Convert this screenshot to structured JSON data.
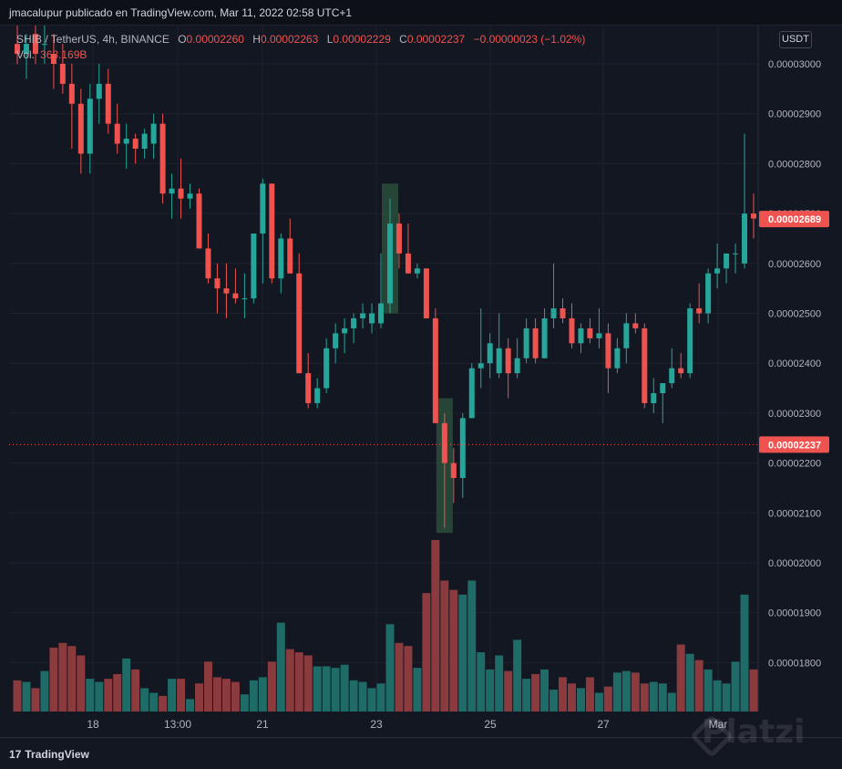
{
  "header": {
    "publisher": "jmacalupur publicado en TradingView.com, Mar 11, 2022 02:58 UTC+1"
  },
  "legend": {
    "symbol": "SHIB / TetherUS, 4h, BINANCE",
    "open_label": "O",
    "open": "0.00002260",
    "high_label": "H",
    "high": "0.00002263",
    "low_label": "L",
    "low": "0.00002229",
    "close_label": "C",
    "close": "0.00002237",
    "change": "−0.00000023 (−1.02%)",
    "volume_label": "Vol.",
    "volume": "363.169B"
  },
  "currency_button": "USDT",
  "footer": {
    "logo": "TradingView",
    "watermark": "Platzi"
  },
  "colors": {
    "bull": "#26a69a",
    "bear": "#ef5350",
    "bull_vol": "#1f6b68",
    "bear_vol": "#8b3a3d",
    "highlight": "#2a4a38",
    "background": "#131722",
    "grid": "#1e222d"
  },
  "chart_data": {
    "type": "candlestick",
    "y_axis_ticks": [
      "0.00003000",
      "0.00002900",
      "0.00002800",
      "0.00002700",
      "0.00002600",
      "0.00002500",
      "0.00002400",
      "0.00002300",
      "0.00002200",
      "0.00002100",
      "0.00002000",
      "0.00001900",
      "0.00001800"
    ],
    "ylim": [
      1.75e-05,
      3.08e-05
    ],
    "x_axis_ticks": [
      "18",
      "13:00",
      "21",
      "23",
      "25",
      "27",
      "Mar"
    ],
    "last_price_label": "0.00002689",
    "current_price_label": "0.00002237",
    "current_price": 2.237e-05,
    "last_price": 2.689e-05,
    "candles": [
      {
        "o": 3.04,
        "h": 3.1,
        "l": 3.0,
        "c": 3.02
      },
      {
        "o": 3.02,
        "h": 3.06,
        "l": 2.97,
        "c": 3.04
      },
      {
        "o": 3.06,
        "h": 3.1,
        "l": 3.0,
        "c": 3.02
      },
      {
        "o": 3.04,
        "h": 3.08,
        "l": 3.0,
        "c": 3.04
      },
      {
        "o": 3.02,
        "h": 3.06,
        "l": 2.95,
        "c": 3.0
      },
      {
        "o": 3.0,
        "h": 3.04,
        "l": 2.94,
        "c": 2.96
      },
      {
        "o": 2.96,
        "h": 3.0,
        "l": 2.83,
        "c": 2.92
      },
      {
        "o": 2.92,
        "h": 2.95,
        "l": 2.78,
        "c": 2.82
      },
      {
        "o": 2.82,
        "h": 2.96,
        "l": 2.78,
        "c": 2.93
      },
      {
        "o": 2.93,
        "h": 3.0,
        "l": 2.88,
        "c": 2.96
      },
      {
        "o": 2.96,
        "h": 2.99,
        "l": 2.86,
        "c": 2.88
      },
      {
        "o": 2.88,
        "h": 2.92,
        "l": 2.82,
        "c": 2.84
      },
      {
        "o": 2.84,
        "h": 2.88,
        "l": 2.79,
        "c": 2.85
      },
      {
        "o": 2.85,
        "h": 2.86,
        "l": 2.8,
        "c": 2.83
      },
      {
        "o": 2.83,
        "h": 2.87,
        "l": 2.81,
        "c": 2.86
      },
      {
        "o": 2.84,
        "h": 2.9,
        "l": 2.81,
        "c": 2.88
      },
      {
        "o": 2.88,
        "h": 2.9,
        "l": 2.72,
        "c": 2.74
      },
      {
        "o": 2.74,
        "h": 2.78,
        "l": 2.69,
        "c": 2.75
      },
      {
        "o": 2.75,
        "h": 2.81,
        "l": 2.69,
        "c": 2.73
      },
      {
        "o": 2.73,
        "h": 2.76,
        "l": 2.71,
        "c": 2.74
      },
      {
        "o": 2.74,
        "h": 2.75,
        "l": 2.63,
        "c": 2.63
      },
      {
        "o": 2.63,
        "h": 2.66,
        "l": 2.56,
        "c": 2.57
      },
      {
        "o": 2.57,
        "h": 2.6,
        "l": 2.5,
        "c": 2.55
      },
      {
        "o": 2.55,
        "h": 2.6,
        "l": 2.49,
        "c": 2.54
      },
      {
        "o": 2.54,
        "h": 2.59,
        "l": 2.52,
        "c": 2.53
      },
      {
        "o": 2.53,
        "h": 2.58,
        "l": 2.49,
        "c": 2.53
      },
      {
        "o": 2.53,
        "h": 2.66,
        "l": 2.52,
        "c": 2.66
      },
      {
        "o": 2.66,
        "h": 2.77,
        "l": 2.56,
        "c": 2.76
      },
      {
        "o": 2.76,
        "h": 2.76,
        "l": 2.56,
        "c": 2.57
      },
      {
        "o": 2.57,
        "h": 2.66,
        "l": 2.54,
        "c": 2.65
      },
      {
        "o": 2.65,
        "h": 2.69,
        "l": 2.58,
        "c": 2.58
      },
      {
        "o": 2.58,
        "h": 2.62,
        "l": 2.38,
        "c": 2.38
      },
      {
        "o": 2.38,
        "h": 2.42,
        "l": 2.31,
        "c": 2.32
      },
      {
        "o": 2.32,
        "h": 2.37,
        "l": 2.31,
        "c": 2.35
      },
      {
        "o": 2.35,
        "h": 2.45,
        "l": 2.34,
        "c": 2.43
      },
      {
        "o": 2.43,
        "h": 2.48,
        "l": 2.4,
        "c": 2.46
      },
      {
        "o": 2.46,
        "h": 2.49,
        "l": 2.42,
        "c": 2.47
      },
      {
        "o": 2.47,
        "h": 2.5,
        "l": 2.44,
        "c": 2.49
      },
      {
        "o": 2.49,
        "h": 2.52,
        "l": 2.47,
        "c": 2.5
      },
      {
        "o": 2.48,
        "h": 2.52,
        "l": 2.46,
        "c": 2.5
      },
      {
        "o": 2.48,
        "h": 2.62,
        "l": 2.47,
        "c": 2.52
      },
      {
        "o": 2.52,
        "h": 2.73,
        "l": 2.5,
        "c": 2.68
      },
      {
        "o": 2.68,
        "h": 2.7,
        "l": 2.59,
        "c": 2.62
      },
      {
        "o": 2.62,
        "h": 2.68,
        "l": 2.58,
        "c": 2.58
      },
      {
        "o": 2.58,
        "h": 2.6,
        "l": 2.57,
        "c": 2.59
      },
      {
        "o": 2.59,
        "h": 2.59,
        "l": 2.49,
        "c": 2.49
      },
      {
        "o": 2.49,
        "h": 2.51,
        "l": 2.28,
        "c": 2.28
      },
      {
        "o": 2.28,
        "h": 2.3,
        "l": 2.07,
        "c": 2.2
      },
      {
        "o": 2.2,
        "h": 2.23,
        "l": 2.12,
        "c": 2.17
      },
      {
        "o": 2.17,
        "h": 2.3,
        "l": 2.13,
        "c": 2.29
      },
      {
        "o": 2.29,
        "h": 2.4,
        "l": 2.29,
        "c": 2.39
      },
      {
        "o": 2.39,
        "h": 2.51,
        "l": 2.35,
        "c": 2.4
      },
      {
        "o": 2.4,
        "h": 2.46,
        "l": 2.37,
        "c": 2.44
      },
      {
        "o": 2.38,
        "h": 2.5,
        "l": 2.37,
        "c": 2.43
      },
      {
        "o": 2.43,
        "h": 2.45,
        "l": 2.33,
        "c": 2.38
      },
      {
        "o": 2.38,
        "h": 2.45,
        "l": 2.37,
        "c": 2.41
      },
      {
        "o": 2.41,
        "h": 2.49,
        "l": 2.4,
        "c": 2.47
      },
      {
        "o": 2.47,
        "h": 2.49,
        "l": 2.4,
        "c": 2.41
      },
      {
        "o": 2.41,
        "h": 2.51,
        "l": 2.41,
        "c": 2.49
      },
      {
        "o": 2.49,
        "h": 2.6,
        "l": 2.47,
        "c": 2.51
      },
      {
        "o": 2.51,
        "h": 2.53,
        "l": 2.48,
        "c": 2.49
      },
      {
        "o": 2.49,
        "h": 2.52,
        "l": 2.43,
        "c": 2.44
      },
      {
        "o": 2.44,
        "h": 2.48,
        "l": 2.42,
        "c": 2.47
      },
      {
        "o": 2.47,
        "h": 2.49,
        "l": 2.44,
        "c": 2.45
      },
      {
        "o": 2.45,
        "h": 2.51,
        "l": 2.43,
        "c": 2.46
      },
      {
        "o": 2.46,
        "h": 2.48,
        "l": 2.34,
        "c": 2.39
      },
      {
        "o": 2.39,
        "h": 2.45,
        "l": 2.38,
        "c": 2.43
      },
      {
        "o": 2.43,
        "h": 2.5,
        "l": 2.4,
        "c": 2.48
      },
      {
        "o": 2.48,
        "h": 2.5,
        "l": 2.46,
        "c": 2.47
      },
      {
        "o": 2.47,
        "h": 2.48,
        "l": 2.31,
        "c": 2.32
      },
      {
        "o": 2.32,
        "h": 2.37,
        "l": 2.3,
        "c": 2.34
      },
      {
        "o": 2.34,
        "h": 2.36,
        "l": 2.28,
        "c": 2.36
      },
      {
        "o": 2.36,
        "h": 2.43,
        "l": 2.35,
        "c": 2.39
      },
      {
        "o": 2.39,
        "h": 2.42,
        "l": 2.37,
        "c": 2.38
      },
      {
        "o": 2.38,
        "h": 2.52,
        "l": 2.37,
        "c": 2.51
      },
      {
        "o": 2.51,
        "h": 2.56,
        "l": 2.48,
        "c": 2.5
      },
      {
        "o": 2.5,
        "h": 2.59,
        "l": 2.48,
        "c": 2.58
      },
      {
        "o": 2.58,
        "h": 2.64,
        "l": 2.55,
        "c": 2.59
      },
      {
        "o": 2.59,
        "h": 2.62,
        "l": 2.56,
        "c": 2.62
      },
      {
        "o": 2.62,
        "h": 2.64,
        "l": 2.58,
        "c": 2.62
      },
      {
        "o": 2.6,
        "h": 2.86,
        "l": 2.59,
        "c": 2.7
      },
      {
        "o": 2.7,
        "h": 2.74,
        "l": 2.65,
        "c": 2.69
      }
    ],
    "volumes": [
      0.2,
      0.19,
      0.15,
      0.26,
      0.41,
      0.44,
      0.42,
      0.36,
      0.21,
      0.19,
      0.21,
      0.24,
      0.34,
      0.27,
      0.15,
      0.12,
      0.1,
      0.21,
      0.21,
      0.08,
      0.18,
      0.32,
      0.22,
      0.21,
      0.19,
      0.11,
      0.2,
      0.22,
      0.32,
      0.57,
      0.4,
      0.38,
      0.36,
      0.29,
      0.29,
      0.28,
      0.3,
      0.2,
      0.19,
      0.15,
      0.18,
      0.56,
      0.44,
      0.42,
      0.28,
      0.76,
      1.1,
      0.84,
      0.78,
      0.75,
      0.84,
      0.38,
      0.27,
      0.36,
      0.26,
      0.46,
      0.21,
      0.24,
      0.27,
      0.14,
      0.22,
      0.18,
      0.15,
      0.22,
      0.12,
      0.16,
      0.25,
      0.26,
      0.25,
      0.18,
      0.19,
      0.18,
      0.12,
      0.43,
      0.37,
      0.33,
      0.27,
      0.2,
      0.18,
      0.32,
      0.75,
      0.27
    ],
    "vol_max": 1.1,
    "highlight_ranges": [
      [
        41,
        41
      ],
      [
        47,
        47
      ]
    ]
  }
}
